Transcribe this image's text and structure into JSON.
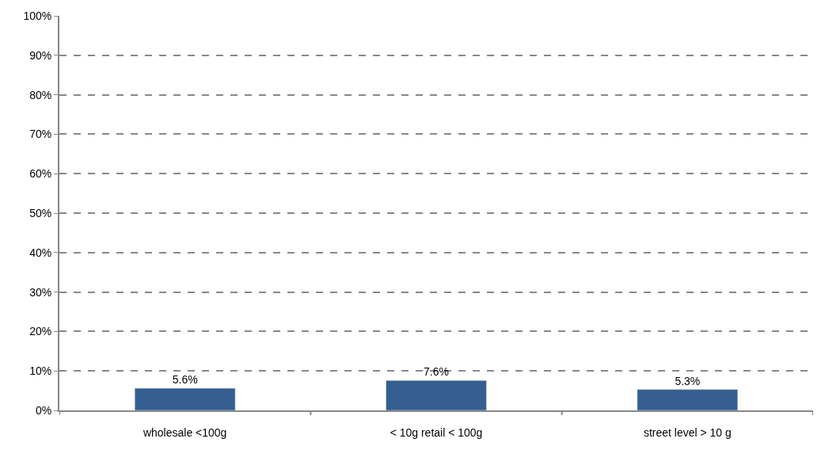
{
  "chart_data": {
    "type": "bar",
    "categories": [
      "wholesale <100g",
      "< 10g retail < 100g",
      "street level > 10 g"
    ],
    "values": [
      5.6,
      7.6,
      5.3
    ],
    "value_labels": [
      "5.6%",
      "7.6%",
      "5.3%"
    ],
    "color": "#355f91",
    "ylim": [
      0,
      100
    ],
    "yticks": [
      {
        "value": 0,
        "label": "0%"
      },
      {
        "value": 10,
        "label": "10%"
      },
      {
        "value": 20,
        "label": "20%"
      },
      {
        "value": 30,
        "label": "30%"
      },
      {
        "value": 40,
        "label": "40%"
      },
      {
        "value": 50,
        "label": "50%"
      },
      {
        "value": 60,
        "label": "60%"
      },
      {
        "value": 70,
        "label": "70%"
      },
      {
        "value": 80,
        "label": "80%"
      },
      {
        "value": 90,
        "label": "90%"
      },
      {
        "value": 100,
        "label": "100%"
      }
    ],
    "grid": "y",
    "legend": false
  }
}
